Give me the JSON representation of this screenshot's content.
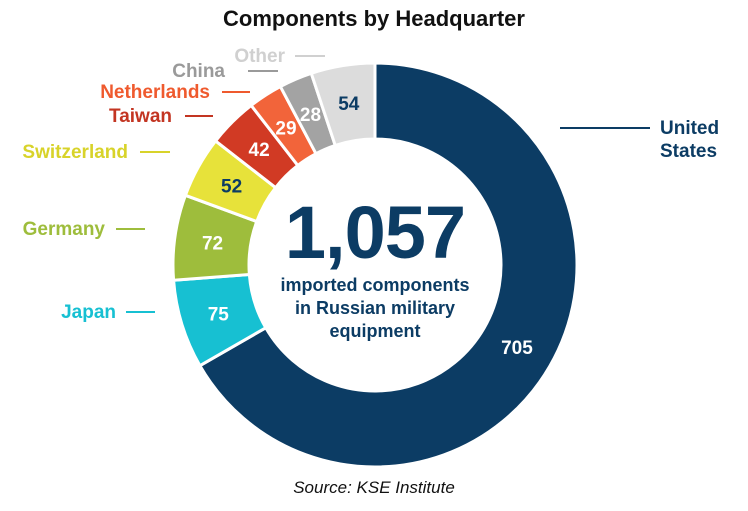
{
  "title": "Components by Headquarter",
  "center": {
    "total": "1,057",
    "caption_lines": [
      "imported components",
      "in Russian military",
      "equipment"
    ]
  },
  "source": "Source: KSE Institute",
  "chart_data": {
    "type": "pie",
    "title": "Components by Headquarter",
    "categories": [
      "United States",
      "Japan",
      "Germany",
      "Switzerland",
      "Taiwan",
      "Netherlands",
      "China",
      "Other"
    ],
    "values": [
      705,
      75,
      72,
      52,
      42,
      29,
      28,
      54
    ],
    "total": 1057,
    "category_label_lines": [
      [
        "United",
        "States"
      ],
      [
        "Japan"
      ],
      [
        "Germany"
      ],
      [
        "Switzerland"
      ],
      [
        "Taiwan"
      ],
      [
        "Netherlands"
      ],
      [
        "China"
      ],
      [
        "Other"
      ]
    ],
    "colors": {
      "United States": "#0c3c64",
      "Japan": "#17c0d2",
      "Germany": "#9ebd3c",
      "Switzerland": "#e7e23a",
      "Taiwan": "#d13a24",
      "Netherlands": "#f2643a",
      "China": "#a3a3a3",
      "Other": "#dcdcdc"
    },
    "label_colors": {
      "United States": "#0c3c64",
      "Japan": "#17c0d2",
      "Germany": "#9ebd3c",
      "Switzerland": "#d8d32a",
      "Taiwan": "#c33522",
      "Netherlands": "#ef5a2e",
      "China": "#9a9a9a",
      "Other": "#d0d0d0"
    },
    "value_label_colors": {
      "United States": "#ffffff",
      "Japan": "#ffffff",
      "Germany": "#ffffff",
      "Switzerland": "#0c3c64",
      "Taiwan": "#ffffff",
      "Netherlands": "#ffffff",
      "China": "#ffffff",
      "Other": "#0c3c64"
    },
    "donut": true,
    "start": "top, clockwise"
  }
}
